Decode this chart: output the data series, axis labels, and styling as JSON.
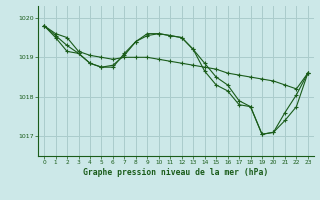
{
  "title": "Graphe pression niveau de la mer (hPa)",
  "bg_color": "#cce8e8",
  "grid_color": "#aacccc",
  "line_color": "#1a5c1a",
  "xlim": [
    -0.5,
    23.5
  ],
  "ylim": [
    1016.5,
    1020.3
  ],
  "yticks": [
    1017,
    1018,
    1019,
    1020
  ],
  "xticks": [
    0,
    1,
    2,
    3,
    4,
    5,
    6,
    7,
    8,
    9,
    10,
    11,
    12,
    13,
    14,
    15,
    16,
    17,
    18,
    19,
    20,
    21,
    22,
    23
  ],
  "series": [
    [
      1019.8,
      1019.6,
      1019.5,
      1019.15,
      1019.05,
      1019.0,
      1018.95,
      1019.0,
      1019.0,
      1019.0,
      1018.95,
      1018.9,
      1018.85,
      1018.8,
      1018.75,
      1018.7,
      1018.6,
      1018.55,
      1018.5,
      1018.45,
      1018.4,
      1018.3,
      1018.2,
      1018.6
    ],
    [
      1019.8,
      1019.55,
      1019.3,
      1019.1,
      1018.85,
      1018.75,
      1018.75,
      1019.1,
      1019.4,
      1019.55,
      1019.6,
      1019.55,
      1019.5,
      1019.2,
      1018.85,
      1018.5,
      1018.3,
      1017.9,
      1017.75,
      1017.05,
      1017.1,
      1017.4,
      1017.75,
      1018.6
    ],
    [
      1019.8,
      1019.5,
      1019.15,
      1019.1,
      1018.85,
      1018.75,
      1018.8,
      1019.05,
      1019.4,
      1019.6,
      1019.6,
      1019.55,
      1019.5,
      1019.2,
      1018.65,
      1018.3,
      1018.15,
      1017.8,
      1017.75,
      1017.05,
      1017.1,
      1017.6,
      1018.05,
      1018.6
    ]
  ]
}
